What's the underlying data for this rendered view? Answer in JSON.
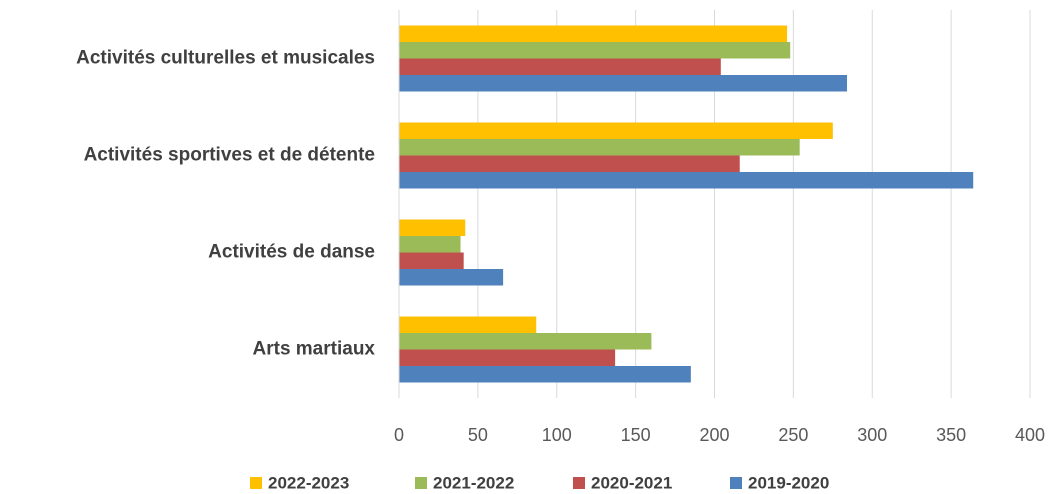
{
  "chart_data": {
    "type": "hbar",
    "categories": [
      "Activités culturelles et musicales",
      "Activités sportives et de détente",
      "Activités de danse",
      "Arts martiaux"
    ],
    "series": [
      {
        "name": "2022-2023",
        "color": "#FFC000",
        "values": [
          246,
          275,
          42,
          87
        ]
      },
      {
        "name": "2021-2022",
        "color": "#9BBB59",
        "values": [
          248,
          254,
          39,
          160
        ]
      },
      {
        "name": "2020-2021",
        "color": "#C0504D",
        "values": [
          204,
          216,
          41,
          137
        ]
      },
      {
        "name": "2019-2020",
        "color": "#4F81BD",
        "values": [
          284,
          364,
          66,
          185
        ]
      }
    ],
    "xlim": [
      0,
      400
    ],
    "xticks": [
      0,
      50,
      100,
      150,
      200,
      250,
      300,
      350,
      400
    ],
    "grid": true,
    "legend": "bottom"
  }
}
